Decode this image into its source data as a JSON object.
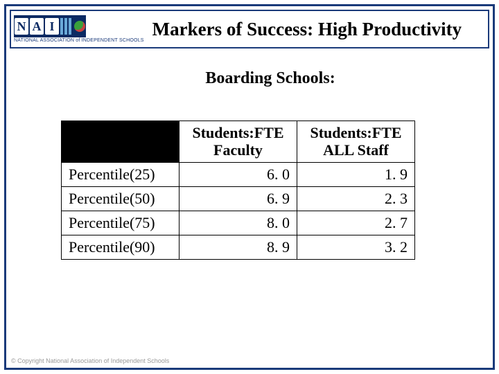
{
  "header": {
    "logo_letters": [
      "N",
      "A",
      "I"
    ],
    "logo_subtext": "NATIONAL ASSOCIATION of INDEPENDENT SCHOOLS",
    "title": "Markers of Success: High Productivity"
  },
  "subtitle": "Boarding Schools:",
  "table": {
    "columns": [
      "",
      "Students:FTE Faculty",
      "Students:FTE ALL Staff"
    ],
    "rows": [
      {
        "label": "Percentile(25)",
        "faculty": "6. 0",
        "staff": "1. 9"
      },
      {
        "label": "Percentile(50)",
        "faculty": "6. 9",
        "staff": "2. 3"
      },
      {
        "label": "Percentile(75)",
        "faculty": "8. 0",
        "staff": "2. 7"
      },
      {
        "label": "Percentile(90)",
        "faculty": "8. 9",
        "staff": "3. 2"
      }
    ],
    "border_color": "#000000",
    "header_corner_bg": "#000000",
    "font_size_pt": 16
  },
  "footer": "© Copyright National Association of Independent Schools",
  "colors": {
    "slide_border": "#1a3a7a",
    "logo_bg": "#0b2a63",
    "background": "#ffffff"
  }
}
